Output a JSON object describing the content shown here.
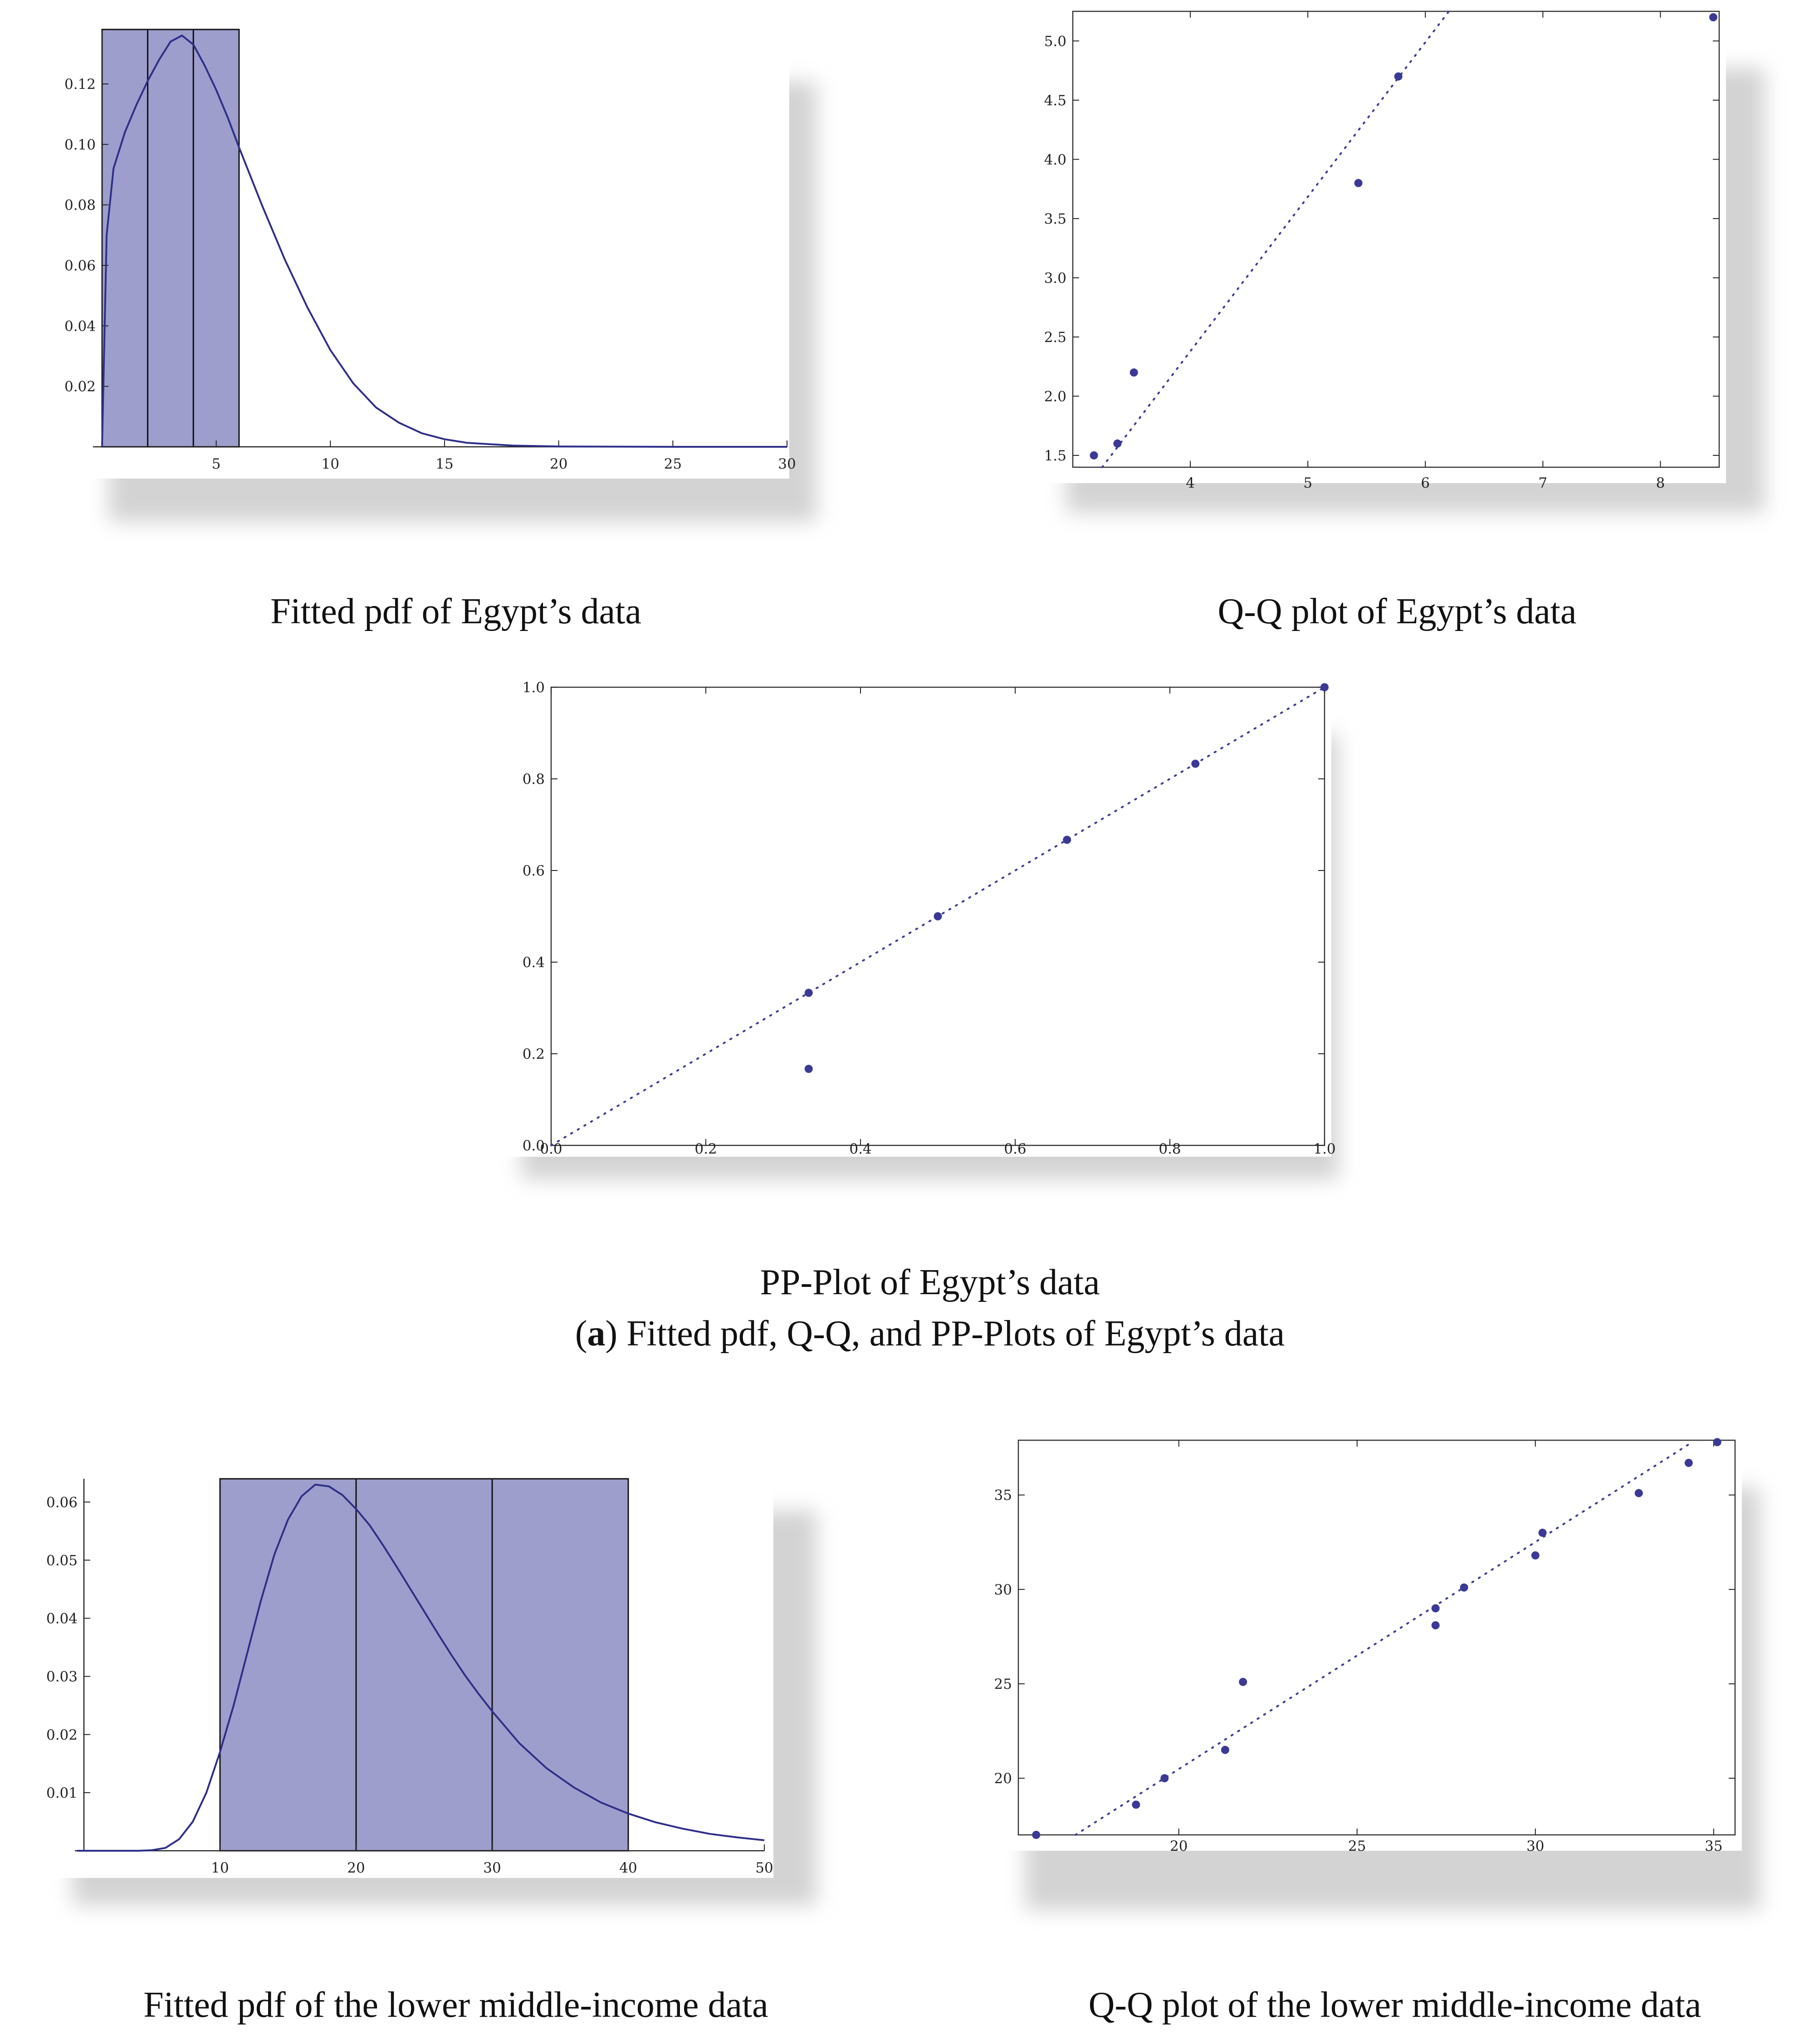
{
  "captions": {
    "pdf_egypt": "Fitted pdf of Egypt’s data",
    "qq_egypt": "Q-Q plot of Egypt’s data",
    "pp_egypt": "PP-Plot of Egypt’s data",
    "group_a_label": "a",
    "group_a_text": ") Fitted pdf, Q-Q, and PP-Plots of Egypt’s data",
    "group_a_open": "(",
    "pdf_lmi": "Fitted pdf of the lower middle-income data",
    "qq_lmi": "Q-Q plot of the lower middle-income data"
  },
  "colors": {
    "fill": "#9e9ecc",
    "curve": "#2e2e8a",
    "points": "#3a3a96",
    "axis": "#222222"
  },
  "chart_data": [
    {
      "id": "pdf_egypt",
      "type": "area",
      "xlim": [
        0,
        30
      ],
      "ylim": [
        0,
        0.138
      ],
      "xticks": [
        5,
        10,
        15,
        20,
        25,
        30
      ],
      "yticks": [
        0.02,
        0.04,
        0.06,
        0.08,
        0.1,
        0.12
      ],
      "ytick_labels": [
        "0.02",
        "0.04",
        "0.06",
        "0.08",
        "0.10",
        "0.12"
      ],
      "histogram": {
        "breaks": [
          0,
          2,
          4,
          6
        ],
        "height": 0.138
      },
      "curve": {
        "x": [
          0,
          0.2,
          0.5,
          1,
          1.5,
          2,
          2.5,
          3,
          3.5,
          4,
          4.5,
          5,
          5.5,
          6,
          7,
          8,
          9,
          10,
          11,
          12,
          13,
          14,
          15,
          16,
          18,
          20,
          25,
          30
        ],
        "y": [
          0.0,
          0.07,
          0.092,
          0.104,
          0.113,
          0.121,
          0.128,
          0.134,
          0.136,
          0.133,
          0.126,
          0.118,
          0.109,
          0.099,
          0.08,
          0.062,
          0.046,
          0.032,
          0.021,
          0.013,
          0.008,
          0.0045,
          0.0025,
          0.0013,
          0.0004,
          0.0001,
          0.0,
          0.0
        ]
      }
    },
    {
      "id": "qq_egypt",
      "type": "scatter",
      "xlim": [
        3.0,
        8.5
      ],
      "ylim": [
        1.4,
        5.25
      ],
      "xticks": [
        4,
        5,
        6,
        7,
        8
      ],
      "xtick_labels": [
        "4",
        "5",
        "6",
        "7",
        "8"
      ],
      "yticks": [
        1.5,
        2.0,
        2.5,
        3.0,
        3.5,
        4.0,
        4.5,
        5.0
      ],
      "ytick_labels": [
        "1.5",
        "2.0",
        "2.5",
        "3.0",
        "3.5",
        "4.0",
        "4.5",
        "5.0"
      ],
      "points": [
        [
          3.18,
          1.5
        ],
        [
          3.38,
          1.6
        ],
        [
          3.52,
          2.2
        ],
        [
          5.43,
          3.8
        ],
        [
          5.77,
          4.7
        ],
        [
          8.45,
          5.2
        ]
      ],
      "reference_line": [
        [
          3.25,
          1.4
        ],
        [
          6.2,
          5.25
        ]
      ]
    },
    {
      "id": "pp_egypt",
      "type": "scatter",
      "xlim": [
        0,
        1
      ],
      "ylim": [
        0,
        1
      ],
      "xticks": [
        0.0,
        0.2,
        0.4,
        0.6,
        0.8,
        1.0
      ],
      "xtick_labels": [
        "0.0",
        "0.2",
        "0.4",
        "0.6",
        "0.8",
        "1.0"
      ],
      "yticks": [
        0.0,
        0.2,
        0.4,
        0.6,
        0.8,
        1.0
      ],
      "ytick_labels": [
        "0.0",
        "0.2",
        "0.4",
        "0.6",
        "0.8",
        "1.0"
      ],
      "points": [
        [
          0.333,
          0.167
        ],
        [
          0.333,
          0.333
        ],
        [
          0.5,
          0.5
        ],
        [
          0.667,
          0.667
        ],
        [
          0.833,
          0.833
        ],
        [
          1.0,
          1.0
        ]
      ],
      "reference_line": [
        [
          0,
          0
        ],
        [
          1,
          1
        ]
      ]
    },
    {
      "id": "pdf_lmi",
      "type": "area",
      "xlim": [
        0,
        50
      ],
      "ylim": [
        0,
        0.064
      ],
      "xticks": [
        10,
        20,
        30,
        40,
        50
      ],
      "yticks": [
        0.01,
        0.02,
        0.03,
        0.04,
        0.05,
        0.06
      ],
      "ytick_labels": [
        "0.01",
        "0.02",
        "0.03",
        "0.04",
        "0.05",
        "0.06"
      ],
      "histogram": {
        "breaks": [
          10,
          20,
          30,
          40
        ],
        "height": 0.064
      },
      "curve": {
        "x": [
          -0.5,
          2,
          4,
          5,
          6,
          7,
          8,
          9,
          10,
          11,
          12,
          13,
          14,
          15,
          16,
          17,
          18,
          19,
          20,
          21,
          22,
          23,
          24,
          25,
          26,
          27,
          28,
          29,
          30,
          32,
          34,
          36,
          38,
          40,
          42,
          44,
          46,
          48,
          50
        ],
        "y": [
          0,
          0,
          0,
          0.0001,
          0.0005,
          0.002,
          0.005,
          0.01,
          0.017,
          0.025,
          0.034,
          0.043,
          0.051,
          0.057,
          0.061,
          0.063,
          0.0627,
          0.0612,
          0.0588,
          0.056,
          0.0525,
          0.0488,
          0.045,
          0.0412,
          0.0374,
          0.0337,
          0.0302,
          0.027,
          0.024,
          0.0185,
          0.0142,
          0.0109,
          0.0083,
          0.0064,
          0.0049,
          0.0038,
          0.0029,
          0.0023,
          0.0018
        ]
      }
    },
    {
      "id": "qq_lmi",
      "type": "scatter",
      "xlim": [
        15.5,
        35.6
      ],
      "ylim": [
        17.0,
        37.9
      ],
      "xticks": [
        20,
        25,
        30,
        35
      ],
      "xtick_labels": [
        "20",
        "25",
        "30",
        "35"
      ],
      "yticks": [
        20,
        25,
        30,
        35
      ],
      "ytick_labels": [
        "20",
        "25",
        "30",
        "35"
      ],
      "points": [
        [
          16.0,
          17.0
        ],
        [
          18.8,
          18.6
        ],
        [
          19.6,
          20.0
        ],
        [
          21.3,
          21.5
        ],
        [
          21.8,
          25.1
        ],
        [
          27.2,
          28.1
        ],
        [
          27.2,
          29.0
        ],
        [
          28.0,
          30.1
        ],
        [
          30.0,
          31.8
        ],
        [
          30.2,
          33.0
        ],
        [
          32.9,
          35.1
        ],
        [
          34.3,
          36.7
        ],
        [
          35.1,
          37.8
        ]
      ],
      "reference_line": [
        [
          17.1,
          17.0
        ],
        [
          34.4,
          37.8
        ]
      ]
    }
  ]
}
